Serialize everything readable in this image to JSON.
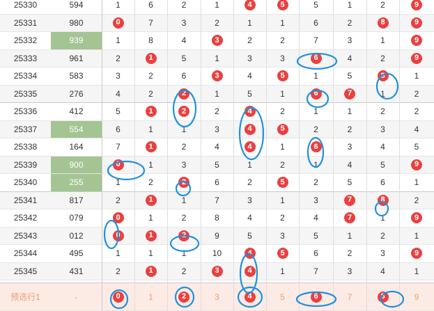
{
  "table": {
    "rows": [
      {
        "issue": "25330",
        "number": "594",
        "digits": [
          1,
          6,
          2,
          1,
          4,
          5,
          5,
          1,
          2,
          9
        ],
        "hits": [
          4,
          5,
          9
        ]
      },
      {
        "issue": "25331",
        "number": "980",
        "digits": [
          0,
          7,
          3,
          2,
          1,
          1,
          6,
          2,
          8,
          9
        ],
        "hits": [
          0,
          8,
          9
        ]
      },
      {
        "issue": "25332",
        "number": "939",
        "digits": [
          1,
          8,
          4,
          3,
          2,
          2,
          7,
          3,
          1,
          9
        ],
        "hits": [
          3,
          9
        ],
        "highlight": true
      },
      {
        "issue": "25333",
        "number": "961",
        "digits": [
          2,
          1,
          5,
          1,
          3,
          3,
          6,
          4,
          2,
          9
        ],
        "hits": [
          1,
          6,
          9
        ]
      },
      {
        "issue": "25334",
        "number": "583",
        "digits": [
          3,
          2,
          6,
          3,
          4,
          5,
          1,
          5,
          8,
          1
        ],
        "hits": [
          3,
          5,
          8
        ]
      },
      {
        "issue": "25335",
        "number": "276",
        "digits": [
          4,
          2,
          2,
          1,
          5,
          1,
          6,
          7,
          1,
          2
        ],
        "hits": [
          2,
          6,
          7
        ]
      },
      {
        "issue": "25336",
        "number": "412",
        "digits": [
          5,
          1,
          2,
          2,
          4,
          2,
          1,
          1,
          2,
          2
        ],
        "hits": [
          1,
          2,
          4
        ]
      },
      {
        "issue": "25337",
        "number": "554",
        "digits": [
          6,
          1,
          1,
          3,
          4,
          5,
          2,
          2,
          3,
          4
        ],
        "hits": [
          4,
          5
        ],
        "highlight": true
      },
      {
        "issue": "25338",
        "number": "164",
        "digits": [
          7,
          1,
          2,
          4,
          4,
          1,
          6,
          3,
          4,
          5
        ],
        "hits": [
          1,
          4,
          6
        ]
      },
      {
        "issue": "25339",
        "number": "900",
        "digits": [
          0,
          1,
          3,
          5,
          1,
          2,
          1,
          4,
          5,
          9
        ],
        "hits": [
          0,
          9
        ],
        "highlight": true
      },
      {
        "issue": "25340",
        "number": "255",
        "digits": [
          1,
          2,
          2,
          6,
          2,
          5,
          2,
          5,
          6,
          1
        ],
        "hits": [
          2,
          5
        ],
        "highlight": true
      },
      {
        "issue": "25341",
        "number": "817",
        "digits": [
          2,
          1,
          1,
          7,
          3,
          1,
          3,
          7,
          8,
          2
        ],
        "hits": [
          1,
          7,
          8
        ]
      },
      {
        "issue": "25342",
        "number": "079",
        "digits": [
          0,
          1,
          2,
          8,
          4,
          2,
          4,
          7,
          1,
          9
        ],
        "hits": [
          0,
          7,
          9
        ]
      },
      {
        "issue": "25343",
        "number": "012",
        "digits": [
          0,
          1,
          2,
          9,
          5,
          3,
          5,
          1,
          2,
          1
        ],
        "hits": [
          0,
          1,
          2
        ]
      },
      {
        "issue": "25344",
        "number": "495",
        "digits": [
          1,
          1,
          1,
          10,
          4,
          5,
          6,
          2,
          3,
          9
        ],
        "hits": [
          4,
          5,
          9
        ]
      },
      {
        "issue": "25345",
        "number": "431",
        "digits": [
          2,
          1,
          2,
          3,
          4,
          1,
          7,
          3,
          4,
          1
        ],
        "hits": [
          1,
          3,
          4
        ]
      }
    ],
    "forecast": {
      "label": "预选行1",
      "number": "-",
      "digits": [
        0,
        1,
        2,
        3,
        4,
        5,
        6,
        7,
        8,
        9
      ],
      "hits": [
        0,
        2,
        4,
        6,
        8
      ]
    }
  },
  "colors": {
    "ball": "#ea4040",
    "highlight": "#a4c493",
    "circle": "#1e90e0",
    "forecast_text": "#e7a07b"
  }
}
